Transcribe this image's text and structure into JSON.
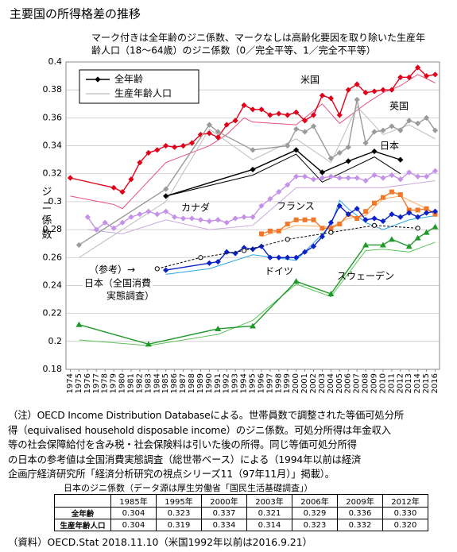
{
  "title": "主要国の所得格差の推移",
  "chart_data": {
    "type": "line",
    "subtitle": [
      "マーク付きは全年齢のジニ係数、マークなしは高齢化要因を取り除いた生産年",
      "齢人口（18〜64歳）のジニ係数（0／完全平等、1／完全不平等）"
    ],
    "y_label": "ジニ係数",
    "xlim": [
      1973.5,
      2016.5
    ],
    "xticks": [
      1974,
      1975,
      1976,
      1977,
      1978,
      1979,
      1980,
      1981,
      1982,
      1983,
      1984,
      1985,
      1986,
      1987,
      1988,
      1989,
      1990,
      1991,
      1992,
      1993,
      1994,
      1995,
      1996,
      1997,
      1998,
      1999,
      2000,
      2001,
      2002,
      2003,
      2004,
      2005,
      2006,
      2007,
      2008,
      2009,
      2010,
      2011,
      2012,
      2013,
      2014,
      2015,
      2016
    ],
    "ylim": [
      0.18,
      0.4
    ],
    "yticks": [
      0.18,
      0.2,
      0.22,
      0.24,
      0.26,
      0.28,
      0.3,
      0.32,
      0.34,
      0.36,
      0.38,
      0.4
    ],
    "grid": true,
    "legend": {
      "position": "upper left",
      "entries": [
        "全年齢",
        "生産年齢人口"
      ]
    },
    "series": [
      {
        "name": "米国",
        "color": "#e0001a",
        "thin_color": "#e8507a",
        "marker": "diamond",
        "x": [
          1974,
          1979,
          1980,
          1981,
          1982,
          1983,
          1984,
          1985,
          1986,
          1987,
          1988,
          1989,
          1990,
          1991,
          1992,
          1993,
          1994,
          1995,
          1996,
          1997,
          1998,
          1999,
          2000,
          2001,
          2002,
          2003,
          2004,
          2005,
          2006,
          2007,
          2008,
          2009,
          2010,
          2011,
          2012,
          2013,
          2014,
          2015,
          2016
        ],
        "values": [
          0.317,
          0.31,
          0.307,
          0.316,
          0.328,
          0.335,
          0.337,
          0.34,
          0.339,
          0.34,
          0.342,
          0.348,
          0.349,
          0.346,
          0.355,
          0.358,
          0.369,
          0.366,
          0.366,
          0.362,
          0.363,
          0.362,
          0.364,
          0.358,
          0.362,
          0.376,
          0.374,
          0.362,
          0.38,
          0.384,
          0.378,
          0.379,
          0.38,
          0.38,
          0.389,
          0.389,
          0.396,
          0.39,
          0.391
        ],
        "working_x": [
          1974,
          1979,
          1980,
          1985,
          1990,
          1992,
          1994,
          1995,
          2000,
          2003,
          2005,
          2008,
          2010,
          2012,
          2014,
          2016
        ],
        "working": [
          0.304,
          0.298,
          0.295,
          0.328,
          0.34,
          0.348,
          0.36,
          0.357,
          0.355,
          0.37,
          0.356,
          0.37,
          0.378,
          0.383,
          0.391,
          0.385
        ]
      },
      {
        "name": "英国",
        "color": "#9a9a9a",
        "thin_color": "#bdbdbd",
        "marker": "diamond",
        "x": [
          1975,
          1985,
          1990,
          1991,
          1995,
          1999,
          2000,
          2001,
          2002,
          2004,
          2005,
          2006,
          2007,
          2008,
          2009,
          2010,
          2011,
          2012,
          2013,
          2014,
          2015,
          2016
        ],
        "values": [
          0.269,
          0.309,
          0.355,
          0.35,
          0.337,
          0.34,
          0.352,
          0.35,
          0.354,
          0.331,
          0.335,
          0.339,
          0.373,
          0.342,
          0.35,
          0.351,
          0.354,
          0.351,
          0.358,
          0.356,
          0.36,
          0.351
        ],
        "working_x": [
          1975,
          1985,
          1990,
          1995,
          2000,
          2004,
          2007,
          2010,
          2013,
          2016
        ],
        "working": [
          0.26,
          0.3,
          0.352,
          0.33,
          0.345,
          0.328,
          0.368,
          0.348,
          0.355,
          0.345
        ]
      },
      {
        "name": "日本",
        "color": "#000000",
        "thin_color": "#000000",
        "marker": "diamond",
        "x": [
          1985,
          1995,
          2000,
          2003,
          2006,
          2009,
          2012
        ],
        "values": [
          0.304,
          0.323,
          0.337,
          0.321,
          0.329,
          0.336,
          0.33
        ],
        "working_x": [
          1985,
          1995,
          2000,
          2003,
          2006,
          2009,
          2012
        ],
        "working": [
          0.304,
          0.319,
          0.334,
          0.314,
          0.323,
          0.332,
          0.32
        ]
      },
      {
        "name": "カナダ",
        "color": "#c592e8",
        "thin_color": "#c9a9de",
        "marker": "diamond",
        "x": [
          1976,
          1977,
          1978,
          1979,
          1980,
          1981,
          1982,
          1983,
          1984,
          1985,
          1986,
          1987,
          1988,
          1989,
          1990,
          1991,
          1992,
          1993,
          1994,
          1995,
          1996,
          1997,
          1998,
          1999,
          2000,
          2001,
          2002,
          2003,
          2004,
          2005,
          2006,
          2007,
          2008,
          2009,
          2010,
          2011,
          2012,
          2013,
          2014,
          2015,
          2016
        ],
        "values": [
          0.289,
          0.28,
          0.285,
          0.281,
          0.285,
          0.289,
          0.291,
          0.293,
          0.291,
          0.293,
          0.289,
          0.288,
          0.288,
          0.287,
          0.286,
          0.287,
          0.285,
          0.288,
          0.289,
          0.289,
          0.297,
          0.302,
          0.307,
          0.312,
          0.318,
          0.318,
          0.316,
          0.317,
          0.318,
          0.317,
          0.317,
          0.317,
          0.315,
          0.319,
          0.317,
          0.319,
          0.316,
          0.321,
          0.318,
          0.318,
          0.322
        ],
        "working_x": [
          1976,
          1980,
          1985,
          1990,
          1995,
          2000,
          2005,
          2010,
          2016
        ],
        "working": [
          0.28,
          0.277,
          0.287,
          0.28,
          0.283,
          0.31,
          0.31,
          0.31,
          0.315
        ]
      },
      {
        "name": "フランス",
        "color": "#f07828",
        "thin_color": "#ffa860",
        "marker": "square",
        "x": [
          1996,
          1997,
          1998,
          1999,
          2000,
          2001,
          2002,
          2003,
          2004,
          2005,
          2006,
          2007,
          2008,
          2009,
          2010,
          2011,
          2012,
          2013,
          2014,
          2015,
          2016
        ],
        "values": [
          0.277,
          0.279,
          0.279,
          0.284,
          0.287,
          0.287,
          0.287,
          0.281,
          0.281,
          0.284,
          0.291,
          0.288,
          0.293,
          0.299,
          0.303,
          0.307,
          0.305,
          0.294,
          0.294,
          0.295,
          0.291
        ],
        "working_x": [
          1996,
          2000,
          2004,
          2006,
          2008,
          2010,
          2012,
          2016
        ],
        "working": [
          0.275,
          0.283,
          0.282,
          0.288,
          0.29,
          0.302,
          0.304,
          0.292
        ]
      },
      {
        "name": "ドイツ",
        "color": "#0a22c8",
        "thin_color": "#2aa6e6",
        "marker": "diamond",
        "x": [
          1985,
          1990,
          1991,
          1992,
          1993,
          1994,
          1995,
          1996,
          1997,
          1998,
          1999,
          2000,
          2001,
          2002,
          2003,
          2004,
          2005,
          2006,
          2007,
          2008,
          2009,
          2010,
          2011,
          2012,
          2013,
          2014,
          2015,
          2016
        ],
        "values": [
          0.251,
          0.256,
          0.257,
          0.264,
          0.263,
          0.267,
          0.266,
          0.268,
          0.26,
          0.26,
          0.26,
          0.26,
          0.264,
          0.268,
          0.275,
          0.285,
          0.297,
          0.291,
          0.295,
          0.287,
          0.288,
          0.286,
          0.291,
          0.289,
          0.292,
          0.289,
          0.292,
          0.293
        ],
        "working_x": [
          1985,
          1990,
          1995,
          2000,
          2004,
          2005,
          2006,
          2008,
          2010,
          2013,
          2016
        ],
        "working": [
          0.248,
          0.252,
          0.262,
          0.258,
          0.283,
          0.301,
          0.295,
          0.285,
          0.28,
          0.287,
          0.29
        ]
      },
      {
        "name": "スウェーデン",
        "color": "#1f9a2a",
        "thin_color": "#5cc45c",
        "marker": "triangle",
        "x": [
          1975,
          1983,
          1991,
          1995,
          2000,
          2004,
          2008,
          2010,
          2011,
          2013,
          2014,
          2015,
          2016
        ],
        "values": [
          0.212,
          0.198,
          0.209,
          0.211,
          0.243,
          0.234,
          0.269,
          0.269,
          0.273,
          0.268,
          0.274,
          0.278,
          0.282
        ],
        "working_x": [
          1975,
          1983,
          1991,
          1995,
          2000,
          2004,
          2008,
          2010,
          2013,
          2016
        ],
        "working": [
          0.201,
          0.197,
          0.205,
          0.215,
          0.241,
          0.232,
          0.265,
          0.266,
          0.264,
          0.271
        ]
      }
    ],
    "reference": {
      "label": "（参考）→",
      "name_lines": [
        "日本（全国消費",
        "実態調査）"
      ],
      "color": "#000000",
      "x": [
        1984,
        1989,
        1994,
        1999,
        2004,
        2009,
        2014
      ],
      "values": [
        0.252,
        0.26,
        0.265,
        0.273,
        0.278,
        0.283,
        0.281
      ]
    }
  },
  "notes": [
    "（注）OECD Income Distribution Databaseによる。世帯員数で調整された等価可処分所",
    "得（equivalised household disposable income）のジニ係数。可処分所得は年金収入",
    "等の社会保障給付を含み税・社会保険料は引いた後の所得。同じ等価可処分所得",
    "の日本の参考値は全国消費実態調査（総世帯ベース）による（1994年以前は経済",
    "企画庁経済研究所「経済分析研究の視点シリーズ11（97年11月）」掲載）。"
  ],
  "table": {
    "title": "日本のジニ係数（データ源は厚生労働省「国民生活基礎調査」）",
    "header": [
      "1985年",
      "1995年",
      "2000年",
      "2003年",
      "2006年",
      "2009年",
      "2012年"
    ],
    "rows": [
      {
        "label": "全年齢",
        "values": [
          "0.304",
          "0.323",
          "0.337",
          "0.321",
          "0.329",
          "0.336",
          "0.330"
        ]
      },
      {
        "label": "生産年齢人口",
        "values": [
          "0.304",
          "0.319",
          "0.334",
          "0.314",
          "0.323",
          "0.332",
          "0.320"
        ]
      }
    ]
  },
  "source": "（資料）OECD.Stat 2018.11.10（米国1992年以前は2016.9.21）"
}
